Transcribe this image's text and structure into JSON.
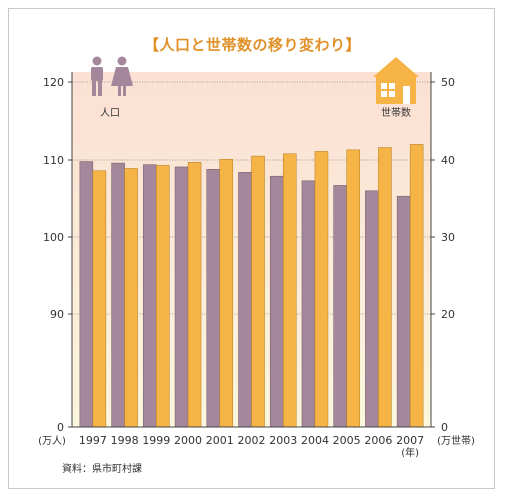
{
  "title": "【人口と世帯数の移り変わり】",
  "source": "資料：県市町村課",
  "icon_labels": {
    "population": "人口",
    "households": "世帯数"
  },
  "colors": {
    "population": "#a4879a",
    "households": "#f5b445",
    "title": "#e0912a",
    "bg_top": "#fbe3d6",
    "bg_bottom": "#fbf5dc"
  },
  "chart_data": {
    "type": "bar",
    "categories": [
      "1997",
      "1998",
      "1999",
      "2000",
      "2001",
      "2002",
      "2003",
      "2004",
      "2005",
      "2006",
      "2007"
    ],
    "x_unit": "(年)",
    "series": [
      {
        "name": "人口",
        "axis": "left",
        "values": [
          109.8,
          109.6,
          109.4,
          109.1,
          108.8,
          108.4,
          107.9,
          107.3,
          106.7,
          106.0,
          105.3
        ]
      },
      {
        "name": "世帯数",
        "axis": "right",
        "values": [
          38.6,
          38.9,
          39.3,
          39.7,
          40.1,
          40.5,
          40.8,
          41.1,
          41.3,
          41.6,
          42.0
        ]
      }
    ],
    "y_left": {
      "unit": "(万人)",
      "ticks": [
        "0",
        "90",
        "100",
        "110",
        "120"
      ],
      "ylim": [
        0,
        120
      ]
    },
    "y_right": {
      "unit": "(万世帯)",
      "ticks": [
        "0",
        "20",
        "30",
        "40",
        "50"
      ],
      "ylim": [
        0,
        50
      ]
    },
    "axis_break": true
  }
}
